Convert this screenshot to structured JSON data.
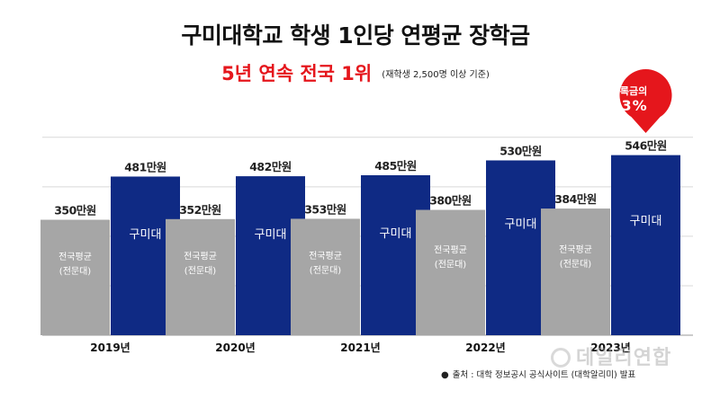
{
  "title": "구미대학교 학생 1인당 연평균 장학금",
  "subtitle": "5년 연속 전국 1위",
  "subnote": "(재학생 2,500명 이상 기준)",
  "callout": {
    "label": "등록금의",
    "value": "93%"
  },
  "source": "출처 : 대학 정보공시 공식사이트 (대학알리미) 발표",
  "watermark": "데일리연합",
  "colors": {
    "national": "#a6a6a6",
    "gumi": "#0f2a84",
    "accent": "#e5161c",
    "grid": "#d9d9d9"
  },
  "chart_data": {
    "type": "bar",
    "categories": [
      "2019년",
      "2020년",
      "2021년",
      "2022년",
      "2023년"
    ],
    "series": [
      {
        "name": "전국평균 (전문대)",
        "bar_label": [
          "전국평균",
          "(전문대)"
        ],
        "values": [
          350,
          352,
          353,
          380,
          384
        ],
        "value_labels": [
          "350만원",
          "352만원",
          "353만원",
          "380만원",
          "384만원"
        ]
      },
      {
        "name": "구미대",
        "bar_label": [
          "구미대"
        ],
        "values": [
          481,
          482,
          485,
          530,
          546
        ],
        "value_labels": [
          "481만원",
          "482만원",
          "485만원",
          "530만원",
          "546만원"
        ]
      }
    ],
    "unit": "만원",
    "ylim": [
      0,
      600
    ],
    "grid": true
  }
}
